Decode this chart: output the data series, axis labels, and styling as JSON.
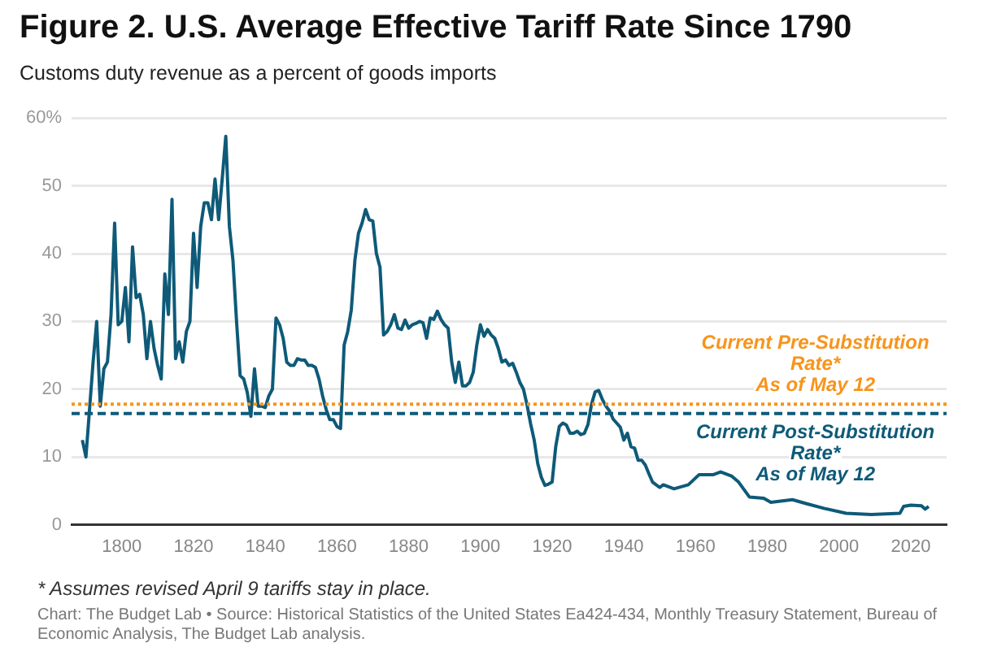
{
  "chart_data": {
    "type": "line",
    "title": "Figure 2. U.S. Average Effective Tariff Rate Since 1790",
    "subtitle": "Customs duty revenue as a percent of goods imports",
    "annotations": [
      "* Assumes revised April 9 tariffs stay in place.",
      "Chart: The Budget Lab • Source: Historical Statistics of the United States Ea424-434, Monthly Treasury Statement, Bureau of Economic Analysis, The Budget Lab analysis."
    ],
    "series": [
      {
        "color": "#0e5a78",
        "x": [
          1789,
          1790,
          1791,
          1792,
          1793,
          1794,
          1795,
          1796,
          1797,
          1798,
          1799,
          1800,
          1801,
          1802,
          1803,
          1804,
          1805,
          1806,
          1807,
          1808,
          1809,
          1810,
          1811,
          1812,
          1813,
          1814,
          1815,
          1816,
          1817,
          1818,
          1819,
          1820,
          1821,
          1822,
          1823,
          1824,
          1825,
          1826,
          1827,
          1828,
          1829,
          1830,
          1831,
          1832,
          1833,
          1834,
          1835,
          1836,
          1837,
          1838,
          1839,
          1840,
          1841,
          1842,
          1843,
          1844,
          1845,
          1846,
          1847,
          1848,
          1849,
          1850,
          1851,
          1852,
          1853,
          1854,
          1855,
          1856,
          1857,
          1858,
          1859,
          1860,
          1861,
          1862,
          1863,
          1864,
          1865,
          1866,
          1867,
          1868,
          1869,
          1870,
          1871,
          1872,
          1873,
          1874,
          1875,
          1876,
          1877,
          1878,
          1879,
          1880,
          1881,
          1882,
          1883,
          1884,
          1885,
          1886,
          1887,
          1888,
          1889,
          1890,
          1891,
          1892,
          1893,
          1894,
          1895,
          1896,
          1897,
          1898,
          1899,
          1900,
          1901,
          1902,
          1903,
          1904,
          1905,
          1906,
          1907,
          1908,
          1909,
          1910,
          1911,
          1912,
          1913,
          1914,
          1915,
          1916,
          1917,
          1918,
          1919,
          1920,
          1921,
          1922,
          1923,
          1924,
          1925,
          1926,
          1927,
          1928,
          1929,
          1930,
          1931,
          1932,
          1933,
          1934,
          1935,
          1936,
          1937,
          1938,
          1939,
          1940,
          1941,
          1942,
          1943,
          1944,
          1945,
          1946,
          1947,
          1948,
          1950,
          1951,
          1954,
          1958,
          1961,
          1965,
          1967,
          1970,
          1972,
          1975,
          1979,
          1981,
          1987,
          1991,
          1996,
          2002,
          2009,
          2017,
          2018,
          2020,
          2023,
          2024,
          2025
        ],
        "values": [
          12.5,
          10,
          17,
          24,
          30,
          17.5,
          23,
          24,
          31,
          44.5,
          29.5,
          30,
          35,
          27,
          41,
          33.5,
          34,
          31,
          24.5,
          30,
          26,
          23.5,
          21.5,
          37,
          31,
          48,
          24.5,
          27,
          24,
          28.5,
          30,
          43,
          35,
          44,
          47.5,
          47.5,
          45,
          51,
          45,
          51,
          57.3,
          44,
          39,
          30,
          22,
          21.5,
          19.5,
          16,
          23,
          17.5,
          17.5,
          17.3,
          19,
          20,
          30.5,
          29.5,
          27.5,
          24,
          23.5,
          23.5,
          24.5,
          24.3,
          24.3,
          23.5,
          23.5,
          23.2,
          21.5,
          19,
          17,
          15.5,
          15.5,
          14.5,
          14.2,
          26.5,
          28.5,
          31.7,
          39,
          43,
          44.5,
          46.5,
          45,
          44.8,
          40,
          38,
          28,
          28.5,
          29.5,
          31,
          29,
          28.8,
          30.2,
          29,
          29.5,
          29.7,
          30,
          29.8,
          27.5,
          30.5,
          30.3,
          31.5,
          30.3,
          29.5,
          29,
          24,
          21,
          24,
          20.5,
          20.5,
          21,
          22.5,
          26.5,
          29.5,
          27.8,
          28.8,
          28,
          27.5,
          26,
          24,
          24.3,
          23.5,
          23.8,
          22.5,
          21,
          20,
          17.7,
          14.9,
          12.5,
          9,
          7,
          5.8,
          6,
          6.3,
          11.5,
          14.5,
          15,
          14.7,
          13.5,
          13.5,
          13.8,
          13.3,
          13.5,
          14.8,
          17.8,
          19.6,
          19.8,
          18.5,
          17.5,
          16.8,
          15.6,
          15,
          14.4,
          12.5,
          13.5,
          11.5,
          11.3,
          9.5,
          9.5,
          8.8,
          7.5,
          6.3,
          5.5,
          5.9,
          5.3,
          5.9,
          7.4,
          7.4,
          7.8,
          7.2,
          6.3,
          4.1,
          3.9,
          3.3,
          3.7,
          3.1,
          2.4,
          1.7,
          1.5,
          1.7,
          2.7,
          2.9,
          2.8,
          2.3,
          2.7
        ]
      }
    ],
    "ref_lines": [
      {
        "axis": "y",
        "value": 17.8,
        "label": "Current Pre-Substitution\nRate*\nAs of May 12",
        "color": "#f7941d",
        "line_style": "dotted"
      },
      {
        "axis": "y",
        "value": 16.4,
        "label": "Current Post-Substitution\nRate*\nAs of May 12",
        "color": "#0e5a78",
        "line_style": "dashed"
      }
    ],
    "xlim": [
      1786,
      2030
    ],
    "xticks": [
      1800,
      1820,
      1840,
      1860,
      1880,
      1900,
      1920,
      1940,
      1960,
      1980,
      2000,
      2020
    ],
    "ylim": [
      0,
      60
    ],
    "yticks": [
      0,
      10,
      20,
      30,
      40,
      50,
      {
        "value": 60,
        "label": "60%"
      }
    ],
    "grid": "y",
    "legend": false,
    "marker": "none",
    "line_style": "solid"
  }
}
